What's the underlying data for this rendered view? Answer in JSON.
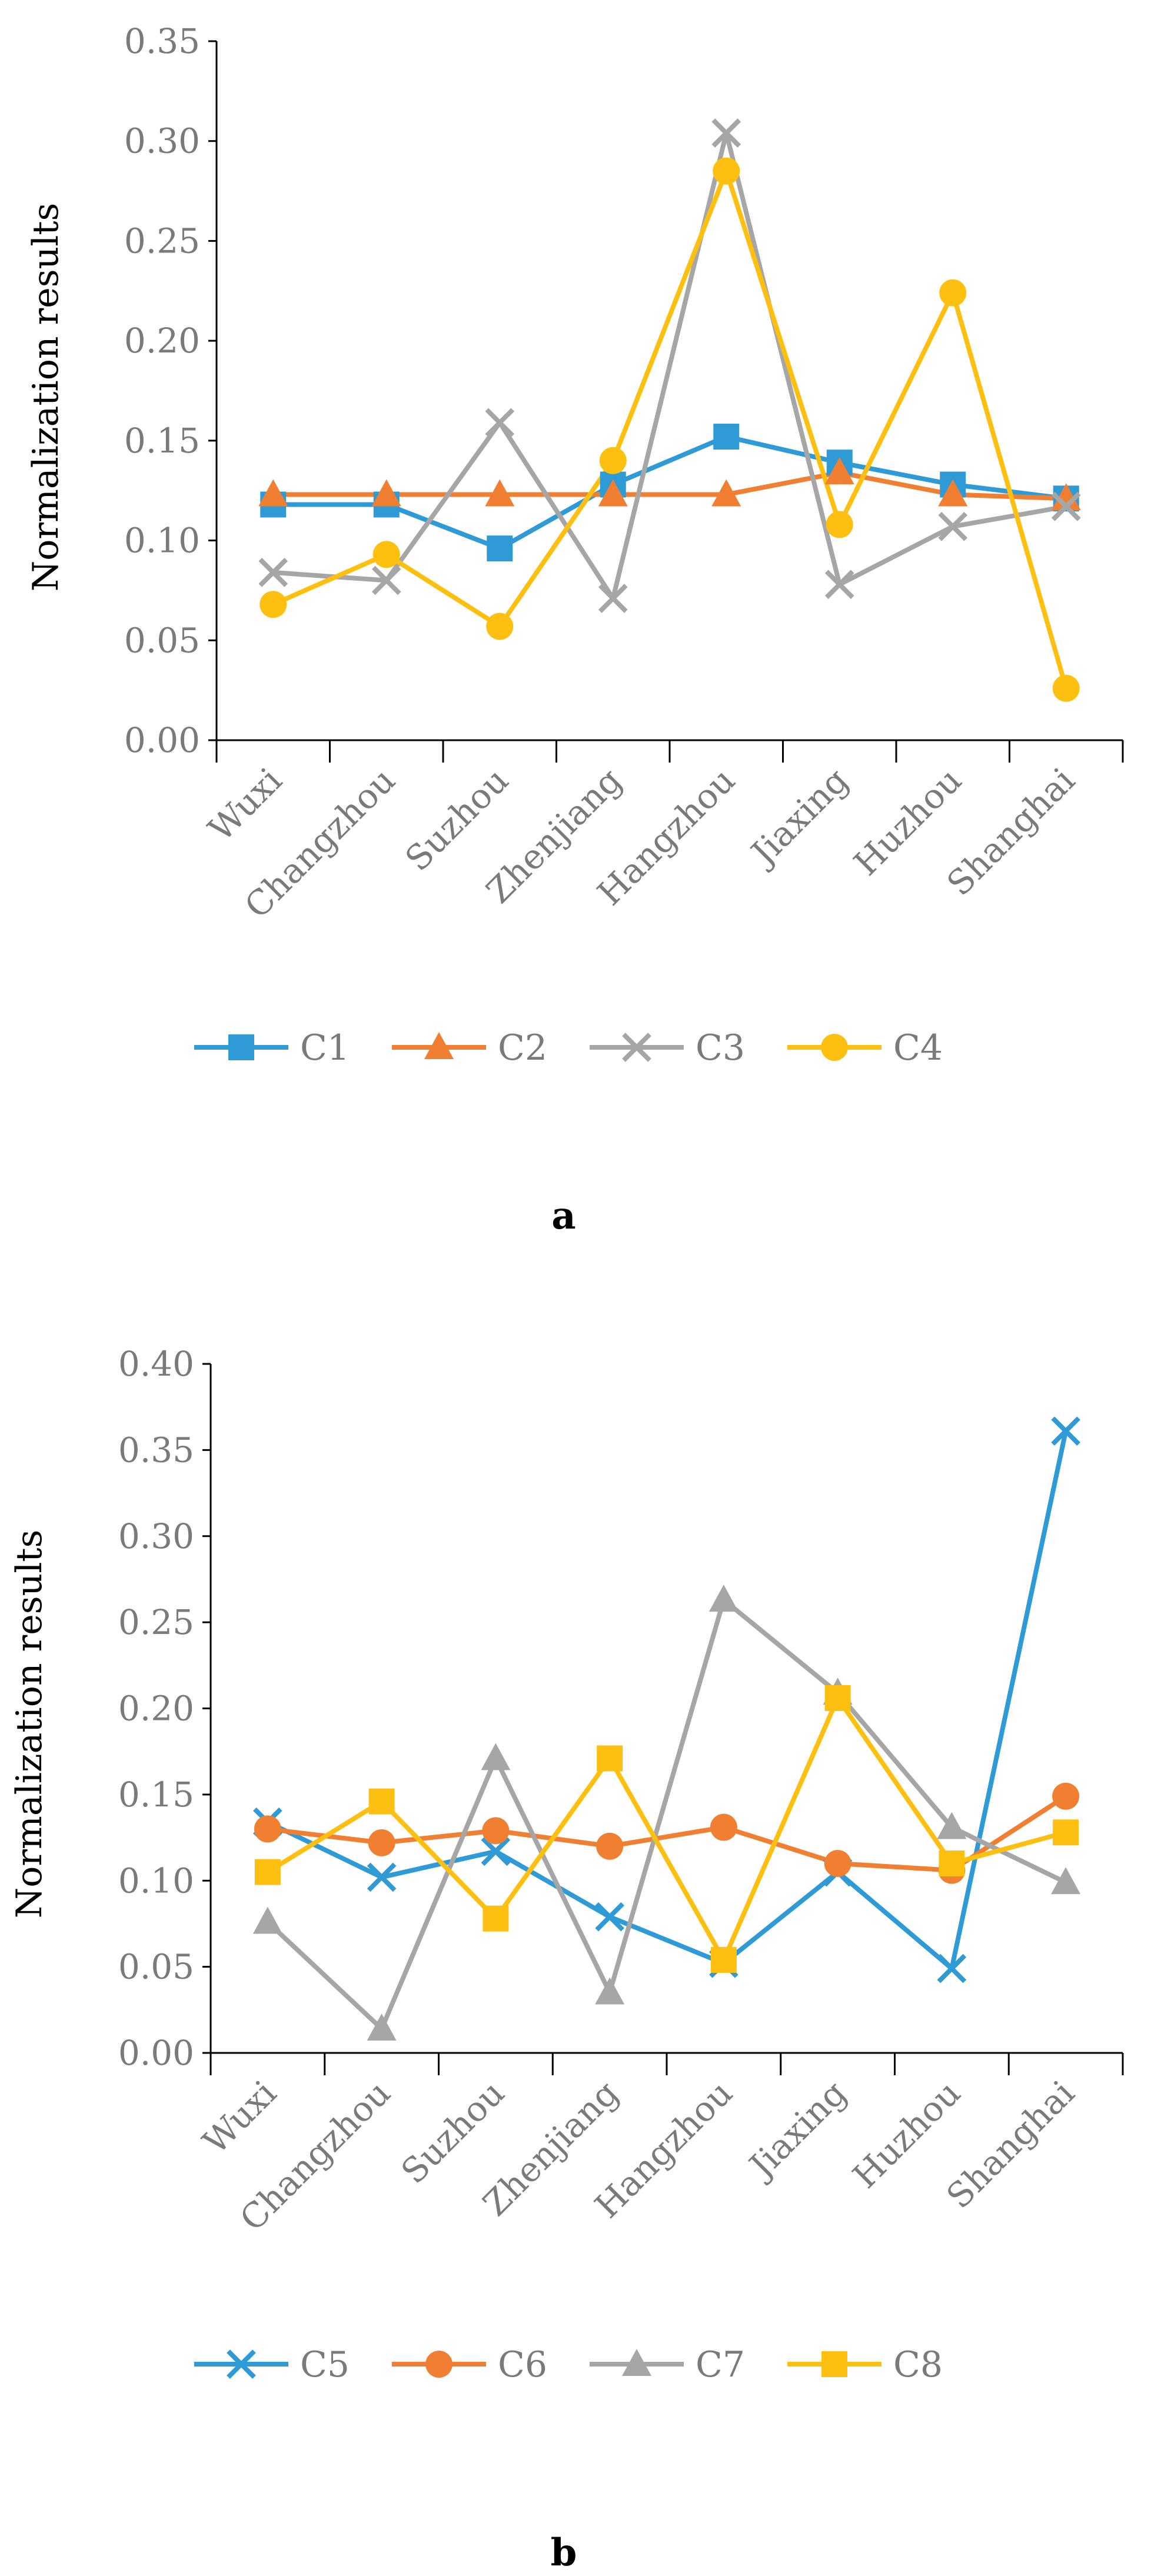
{
  "chart_data": [
    {
      "type": "line",
      "panel_label": "a",
      "title": "",
      "xlabel": "",
      "ylabel": "Normalization results",
      "ylim": [
        0,
        0.35
      ],
      "ytick_step": 0.05,
      "yticks": [
        "0.00",
        "0.05",
        "0.10",
        "0.15",
        "0.20",
        "0.25",
        "0.30",
        "0.35"
      ],
      "grid": false,
      "legend_position": "bottom",
      "categories": [
        "Wuxi",
        "Changzhou",
        "Suzhou",
        "Zhenjiang",
        "Hangzhou",
        "Jiaxing",
        "Huzhou",
        "Shanghai"
      ],
      "series": [
        {
          "name": "C1",
          "color": "#2e9bd6",
          "marker": "square",
          "values": [
            0.118,
            0.118,
            0.096,
            0.128,
            0.152,
            0.139,
            0.128,
            0.121
          ]
        },
        {
          "name": "C2",
          "color": "#f07f32",
          "marker": "triangle",
          "values": [
            0.123,
            0.123,
            0.123,
            0.123,
            0.123,
            0.134,
            0.123,
            0.121
          ]
        },
        {
          "name": "C3",
          "color": "#a6a6a6",
          "marker": "x",
          "values": [
            0.084,
            0.08,
            0.159,
            0.071,
            0.304,
            0.078,
            0.107,
            0.117
          ]
        },
        {
          "name": "C4",
          "color": "#fdc010",
          "marker": "circle",
          "values": [
            0.068,
            0.093,
            0.057,
            0.14,
            0.285,
            0.108,
            0.224,
            0.026
          ]
        }
      ]
    },
    {
      "type": "line",
      "panel_label": "b",
      "title": "",
      "xlabel": "",
      "ylabel": "Normalization results",
      "ylim": [
        0,
        0.4
      ],
      "ytick_step": 0.05,
      "yticks": [
        "0.00",
        "0.05",
        "0.10",
        "0.15",
        "0.20",
        "0.25",
        "0.30",
        "0.35",
        "0.40"
      ],
      "grid": false,
      "legend_position": "bottom",
      "categories": [
        "Wuxi",
        "Changzhou",
        "Suzhou",
        "Zhenjiang",
        "Hangzhou",
        "Jiaxing",
        "Huzhou",
        "Shanghai"
      ],
      "series": [
        {
          "name": "C5",
          "color": "#2e9bd6",
          "marker": "x",
          "values": [
            0.134,
            0.102,
            0.117,
            0.079,
            0.052,
            0.105,
            0.049,
            0.361
          ]
        },
        {
          "name": "C6",
          "color": "#f07f32",
          "marker": "circle",
          "values": [
            0.13,
            0.122,
            0.129,
            0.12,
            0.131,
            0.11,
            0.106,
            0.149
          ]
        },
        {
          "name": "C7",
          "color": "#a6a6a6",
          "marker": "triangle",
          "values": [
            0.076,
            0.014,
            0.171,
            0.035,
            0.263,
            0.209,
            0.131,
            0.099
          ]
        },
        {
          "name": "C8",
          "color": "#fdc010",
          "marker": "square",
          "values": [
            0.105,
            0.146,
            0.078,
            0.171,
            0.054,
            0.206,
            0.11,
            0.128
          ]
        }
      ]
    }
  ]
}
